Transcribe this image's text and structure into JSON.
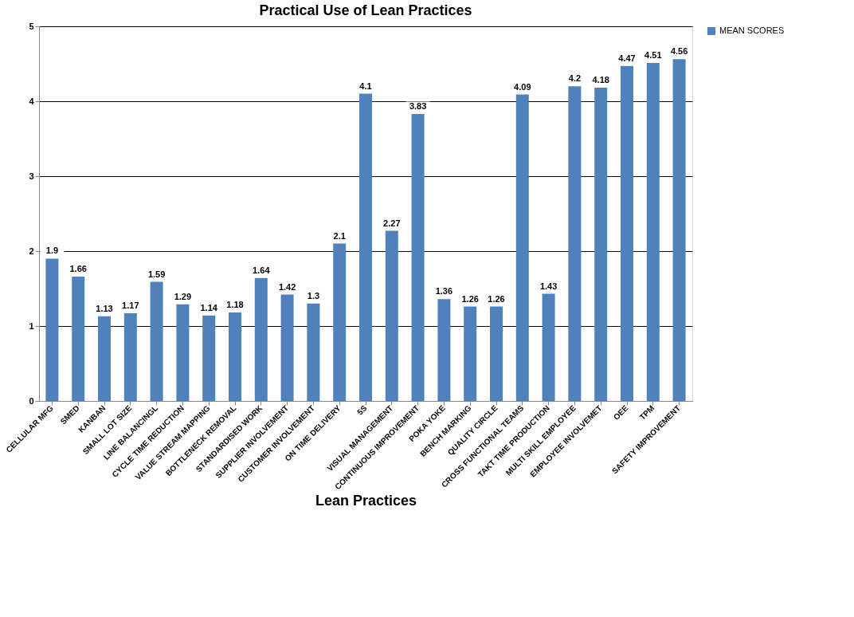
{
  "chart_data": {
    "type": "bar",
    "title": "Practical Use of Lean Practices",
    "xlabel": "Lean Practices",
    "categories": [
      "CELLULAR MFG",
      "SMED",
      "KANBAN",
      "SMALL LOT SIZE",
      "LINE BALANCINGL",
      "CYCLE TIME REDUCTION",
      "VALUE STREAM MAPPING",
      "BOTTLENECK REMOVAL",
      "STANDARDISED WORK",
      "SUPPLIER INVOLVEMENT",
      "CUSTOMER INVOLVEMENT",
      "ON TIME DELIVERY",
      "5S",
      "VISUAL MANAGEMENT",
      "CONTINUOUS IMPROVEMENT",
      "POKA YOKE",
      "BENCH MARKING",
      "QUALITY CIRCLE",
      "CROSS FUNCTIONAL TEAMS",
      "TAKT TIME PRODUCTION",
      "MULTI SKILL EMPLOYEE",
      "EMPLOYEE INVOLVEMET",
      "OEE",
      "TPM",
      "SAFETY IMPROVEMENT"
    ],
    "series": [
      {
        "name": "MEAN SCORES",
        "color": "#4f81bd",
        "values": [
          1.9,
          1.66,
          1.13,
          1.17,
          1.59,
          1.29,
          1.14,
          1.18,
          1.64,
          1.42,
          1.3,
          2.1,
          4.1,
          2.27,
          3.83,
          1.36,
          1.26,
          1.26,
          4.09,
          1.43,
          4.2,
          4.18,
          4.47,
          4.51,
          4.56
        ]
      }
    ],
    "ylim": [
      0,
      5
    ],
    "yticks": [
      0,
      1,
      2,
      3,
      4,
      5
    ],
    "grid": "y",
    "legend": "right",
    "data_labels": true
  }
}
